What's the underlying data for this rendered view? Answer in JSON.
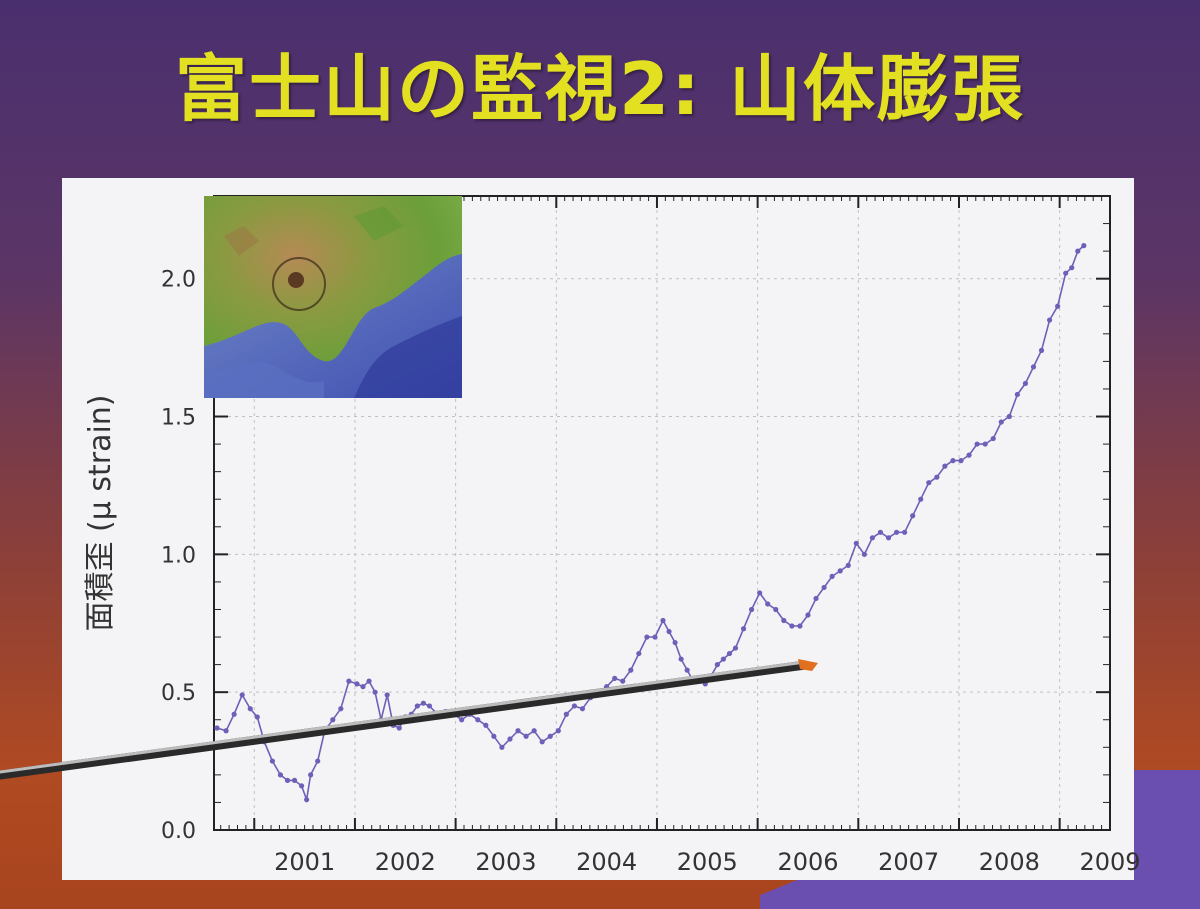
{
  "slide": {
    "title": "富士山の監視2: 山体膨張"
  },
  "chart_data": {
    "type": "line",
    "title": "",
    "xlabel": "",
    "ylabel": "面積歪 (μ strain)",
    "xlim": [
      2000.6,
      2009.5
    ],
    "ylim": [
      0.0,
      2.3
    ],
    "yticks": [
      0.0,
      0.5,
      1.0,
      1.5,
      2.0
    ],
    "ytick_labels": [
      "0.0",
      "0.5",
      "1.0",
      "1.5",
      "2.0"
    ],
    "xtick_labels": [
      "2001",
      "2002",
      "2003",
      "2004",
      "2005",
      "2006",
      "2007",
      "2008",
      "2009"
    ],
    "grid": true,
    "colors": {
      "series": "#6f5fb8"
    },
    "series": [
      {
        "x": [
          2000.63,
          2000.72,
          2000.8,
          2000.88,
          2000.96,
          2001.03,
          2001.1,
          2001.18,
          2001.26,
          2001.33,
          2001.4,
          2001.47,
          2001.52,
          2001.56,
          2001.63,
          2001.7,
          2001.78,
          2001.86,
          2001.94,
          2002.02,
          2002.08,
          2002.14,
          2002.2,
          2002.26,
          2002.32,
          2002.38,
          2002.44,
          2002.5,
          2002.56,
          2002.62,
          2002.68,
          2002.74,
          2002.82,
          2002.9,
          2002.98,
          2003.06,
          2003.14,
          2003.22,
          2003.3,
          2003.38,
          2003.46,
          2003.54,
          2003.62,
          2003.7,
          2003.78,
          2003.86,
          2003.94,
          2004.02,
          2004.1,
          2004.18,
          2004.26,
          2004.34,
          2004.42,
          2004.5,
          2004.58,
          2004.66,
          2004.74,
          2004.82,
          2004.9,
          2004.98,
          2005.06,
          2005.12,
          2005.18,
          2005.24,
          2005.3,
          2005.36,
          2005.42,
          2005.48,
          2005.54,
          2005.6,
          2005.66,
          2005.72,
          2005.78,
          2005.86,
          2005.94,
          2006.02,
          2006.1,
          2006.18,
          2006.26,
          2006.34,
          2006.42,
          2006.5,
          2006.58,
          2006.66,
          2006.74,
          2006.82,
          2006.9,
          2006.98,
          2007.06,
          2007.14,
          2007.22,
          2007.3,
          2007.38,
          2007.46,
          2007.54,
          2007.62,
          2007.7,
          2007.78,
          2007.86,
          2007.94,
          2008.02,
          2008.1,
          2008.18,
          2008.26,
          2008.34,
          2008.42,
          2008.5,
          2008.58,
          2008.66,
          2008.74,
          2008.82,
          2008.9,
          2008.98,
          2009.06,
          2009.12,
          2009.18,
          2009.24
        ],
        "y": [
          0.37,
          0.36,
          0.42,
          0.49,
          0.44,
          0.41,
          0.32,
          0.25,
          0.2,
          0.18,
          0.18,
          0.16,
          0.11,
          0.2,
          0.25,
          0.36,
          0.4,
          0.44,
          0.54,
          0.53,
          0.52,
          0.54,
          0.5,
          0.4,
          0.49,
          0.38,
          0.37,
          0.41,
          0.42,
          0.45,
          0.46,
          0.45,
          0.42,
          0.43,
          0.42,
          0.4,
          0.42,
          0.4,
          0.38,
          0.34,
          0.3,
          0.33,
          0.36,
          0.34,
          0.36,
          0.32,
          0.34,
          0.36,
          0.42,
          0.45,
          0.44,
          0.48,
          0.5,
          0.52,
          0.55,
          0.54,
          0.58,
          0.64,
          0.7,
          0.7,
          0.76,
          0.72,
          0.68,
          0.62,
          0.58,
          0.54,
          0.54,
          0.53,
          0.56,
          0.6,
          0.62,
          0.64,
          0.66,
          0.73,
          0.8,
          0.86,
          0.82,
          0.8,
          0.76,
          0.74,
          0.74,
          0.78,
          0.84,
          0.88,
          0.92,
          0.94,
          0.96,
          1.04,
          1.0,
          1.06,
          1.08,
          1.06,
          1.08,
          1.08,
          1.14,
          1.2,
          1.26,
          1.28,
          1.32,
          1.34,
          1.34,
          1.36,
          1.4,
          1.4,
          1.42,
          1.48,
          1.5,
          1.58,
          1.62,
          1.68,
          1.74,
          1.85,
          1.9,
          2.02,
          2.04,
          2.1,
          2.12
        ]
      }
    ]
  }
}
